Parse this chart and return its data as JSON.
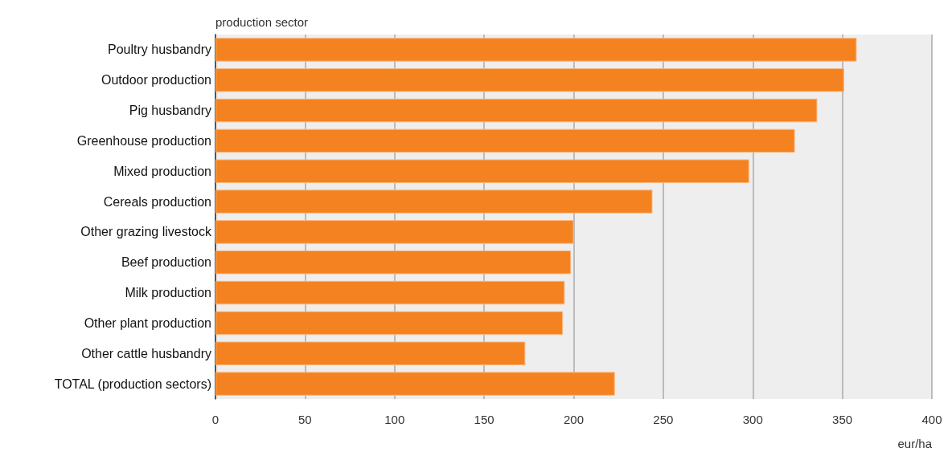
{
  "chart_data": {
    "type": "bar",
    "orientation": "horizontal",
    "ylabel": "production sector",
    "xlabel": "eur/ha",
    "categories": [
      "Poultry husbandry",
      "Outdoor production",
      "Pig husbandry",
      "Greenhouse production",
      "Mixed production",
      "Cereals production",
      "Other grazing livestock",
      "Beef production",
      "Milk production",
      "Other plant production",
      "Other cattle husbandry",
      "TOTAL (production sectors)"
    ],
    "values": [
      358,
      351,
      336,
      323.5,
      298,
      244,
      200,
      198.5,
      195,
      194,
      173,
      223
    ],
    "color": "#f58220",
    "xlim": [
      0,
      400
    ],
    "xticks": [
      0,
      50,
      100,
      150,
      200,
      250,
      300,
      350,
      400
    ],
    "grid": "x"
  }
}
